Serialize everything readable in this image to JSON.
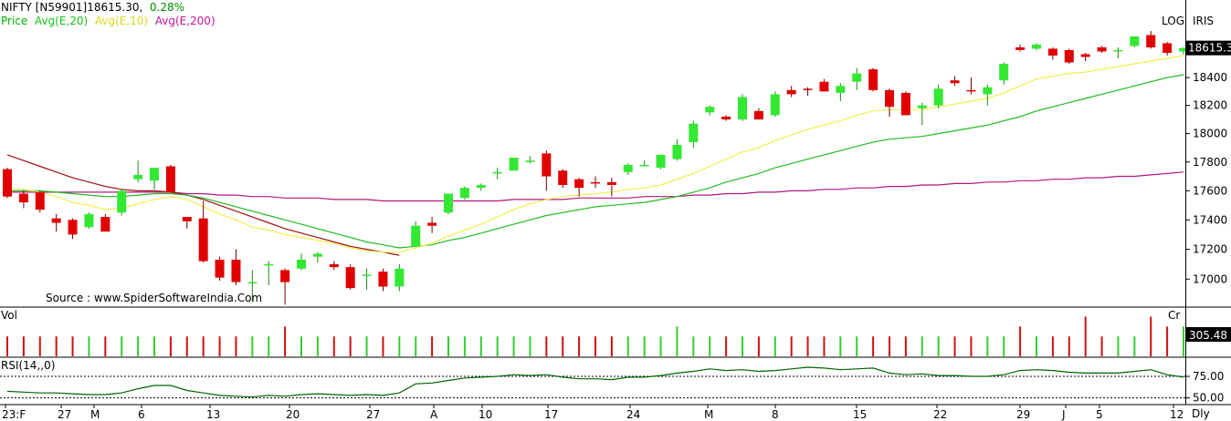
{
  "header": {
    "symbol": "NIFTY [N59901]",
    "last": "18615.30,",
    "change": "0.28%",
    "legend": [
      {
        "label": "Price",
        "color": "#00b000"
      },
      {
        "label": "Avg(E,20)",
        "color": "#19c019"
      },
      {
        "label": "Avg(E,10)",
        "color": "#e8e830"
      },
      {
        "label": "Avg(E,200)",
        "color": "#c0189a"
      }
    ],
    "mode_log": "LOG",
    "mode_iris": "IRIS"
  },
  "source_text": "Source : www.SpiderSoftwareIndia.Com",
  "volume_panel": {
    "label": "Vol",
    "unit": "Cr",
    "last_value": "305.48"
  },
  "rsi_panel": {
    "label": "RSI(14,,0)",
    "ticks": [
      "75.00",
      "50.00"
    ]
  },
  "footer": {
    "timeframe": "Dly"
  },
  "colors": {
    "up": "#33e833",
    "down": "#e00000",
    "ema10": "#f0f050",
    "ema20": "#22bb22",
    "ema200": "#b01880",
    "slow_ma": "#a01010",
    "vol_up": "#33cc33",
    "vol_down": "#cc1010"
  },
  "chart_data": {
    "type": "candlestick",
    "price_axis": {
      "scale": "log",
      "range": [
        16820,
        18740
      ],
      "ticks": [
        "18400",
        "18200",
        "18000",
        "17800",
        "17600",
        "17400",
        "17200",
        "17000"
      ],
      "last_label": "18615.3"
    },
    "date_ticks": [
      "23:F",
      "27",
      "M",
      "6",
      "13",
      "20",
      "27",
      "A",
      "10",
      "17",
      "24",
      "M",
      "8",
      "15",
      "22",
      "29",
      "J",
      "5",
      "12"
    ],
    "ohlc": [
      [
        17750,
        17760,
        17550,
        17560
      ],
      [
        17580,
        17600,
        17480,
        17520
      ],
      [
        17590,
        17600,
        17450,
        17470
      ],
      [
        17410,
        17440,
        17320,
        17380
      ],
      [
        17400,
        17410,
        17270,
        17300
      ],
      [
        17350,
        17450,
        17340,
        17440
      ],
      [
        17420,
        17440,
        17320,
        17320
      ],
      [
        17450,
        17610,
        17430,
        17600
      ],
      [
        17680,
        17810,
        17660,
        17710
      ],
      [
        17670,
        17760,
        17610,
        17760
      ],
      [
        17770,
        17780,
        17600,
        17590
      ],
      [
        17420,
        17420,
        17340,
        17390
      ],
      [
        17410,
        17530,
        17110,
        17120
      ],
      [
        17130,
        17150,
        16990,
        17010
      ],
      [
        17130,
        17200,
        16960,
        16980
      ],
      [
        16980,
        17060,
        16850,
        16980
      ],
      [
        17100,
        17120,
        16960,
        17100
      ],
      [
        17060,
        17070,
        16830,
        16980
      ],
      [
        17070,
        17170,
        17060,
        17130
      ],
      [
        17150,
        17180,
        17110,
        17170
      ],
      [
        17100,
        17120,
        17060,
        17080
      ],
      [
        17080,
        17100,
        16930,
        16940
      ],
      [
        17030,
        17070,
        16930,
        17030
      ],
      [
        17050,
        17070,
        16920,
        16950
      ],
      [
        16950,
        17100,
        16920,
        17070
      ],
      [
        17220,
        17390,
        17220,
        17360
      ],
      [
        17380,
        17420,
        17310,
        17360
      ],
      [
        17450,
        17580,
        17440,
        17580
      ],
      [
        17550,
        17630,
        17540,
        17620
      ],
      [
        17620,
        17650,
        17600,
        17640
      ],
      [
        17720,
        17760,
        17680,
        17730
      ],
      [
        17740,
        17830,
        17740,
        17830
      ],
      [
        17800,
        17840,
        17790,
        17810
      ],
      [
        17860,
        17880,
        17600,
        17700
      ],
      [
        17740,
        17750,
        17620,
        17640
      ],
      [
        17680,
        17690,
        17560,
        17620
      ],
      [
        17660,
        17700,
        17620,
        17650
      ],
      [
        17660,
        17690,
        17560,
        17640
      ],
      [
        17730,
        17790,
        17710,
        17780
      ],
      [
        17780,
        17810,
        17770,
        17780
      ],
      [
        17760,
        17850,
        17750,
        17850
      ],
      [
        17820,
        17960,
        17810,
        17920
      ],
      [
        17940,
        18090,
        17900,
        18070
      ],
      [
        18150,
        18200,
        18130,
        18190
      ],
      [
        18120,
        18130,
        18090,
        18100
      ],
      [
        18100,
        18280,
        18090,
        18260
      ],
      [
        18160,
        18180,
        18100,
        18100
      ],
      [
        18130,
        18300,
        18120,
        18280
      ],
      [
        18310,
        18340,
        18260,
        18280
      ],
      [
        18320,
        18330,
        18270,
        18310
      ],
      [
        18370,
        18390,
        18300,
        18300
      ],
      [
        18290,
        18360,
        18230,
        18340
      ],
      [
        18370,
        18470,
        18310,
        18430
      ],
      [
        18460,
        18470,
        18300,
        18310
      ],
      [
        18310,
        18320,
        18120,
        18190
      ],
      [
        18290,
        18300,
        18130,
        18130
      ],
      [
        18180,
        18220,
        18060,
        18200
      ],
      [
        18200,
        18350,
        18180,
        18320
      ],
      [
        18380,
        18410,
        18340,
        18360
      ],
      [
        18310,
        18400,
        18280,
        18300
      ],
      [
        18280,
        18350,
        18200,
        18330
      ],
      [
        18380,
        18510,
        18350,
        18500
      ],
      [
        18620,
        18640,
        18590,
        18600
      ],
      [
        18610,
        18650,
        18600,
        18640
      ],
      [
        18610,
        18620,
        18530,
        18560
      ],
      [
        18600,
        18610,
        18500,
        18510
      ],
      [
        18570,
        18580,
        18520,
        18550
      ],
      [
        18620,
        18630,
        18580,
        18590
      ],
      [
        18590,
        18620,
        18540,
        18600
      ],
      [
        18630,
        18700,
        18620,
        18700
      ],
      [
        18710,
        18740,
        18610,
        18620
      ],
      [
        18650,
        18660,
        18560,
        18580
      ],
      [
        18590,
        18620,
        18570,
        18615
      ]
    ],
    "ema10": [
      17620,
      17610,
      17590,
      17560,
      17520,
      17500,
      17470,
      17480,
      17510,
      17540,
      17560,
      17540,
      17490,
      17440,
      17400,
      17350,
      17330,
      17300,
      17280,
      17260,
      17240,
      17210,
      17190,
      17180,
      17180,
      17210,
      17240,
      17290,
      17330,
      17370,
      17420,
      17470,
      17510,
      17540,
      17560,
      17570,
      17580,
      17590,
      17610,
      17620,
      17640,
      17680,
      17720,
      17770,
      17820,
      17870,
      17900,
      17950,
      17990,
      18030,
      18060,
      18090,
      18130,
      18160,
      18170,
      18170,
      18170,
      18190,
      18210,
      18230,
      18250,
      18290,
      18340,
      18390,
      18410,
      18430,
      18440,
      18460,
      18480,
      18500,
      18520,
      18540,
      18560
    ],
    "ema20": [
      17600,
      17600,
      17600,
      17590,
      17580,
      17570,
      17560,
      17560,
      17570,
      17580,
      17580,
      17570,
      17550,
      17520,
      17490,
      17460,
      17430,
      17400,
      17370,
      17340,
      17310,
      17280,
      17250,
      17230,
      17210,
      17220,
      17230,
      17260,
      17280,
      17310,
      17340,
      17370,
      17400,
      17430,
      17450,
      17470,
      17490,
      17500,
      17510,
      17520,
      17540,
      17560,
      17590,
      17620,
      17660,
      17690,
      17720,
      17760,
      17790,
      17820,
      17850,
      17880,
      17910,
      17940,
      17960,
      17970,
      17980,
      18000,
      18020,
      18040,
      18060,
      18090,
      18120,
      18160,
      18190,
      18220,
      18250,
      18280,
      18310,
      18340,
      18370,
      18400,
      18420
    ],
    "ema200": [
      17590,
      17590,
      17590,
      17590,
      17590,
      17590,
      17590,
      17590,
      17590,
      17590,
      17590,
      17580,
      17580,
      17570,
      17570,
      17560,
      17560,
      17550,
      17550,
      17550,
      17540,
      17540,
      17540,
      17530,
      17530,
      17530,
      17530,
      17530,
      17530,
      17530,
      17530,
      17540,
      17540,
      17540,
      17540,
      17550,
      17550,
      17550,
      17550,
      17560,
      17560,
      17560,
      17570,
      17570,
      17580,
      17580,
      17590,
      17590,
      17600,
      17600,
      17610,
      17610,
      17620,
      17620,
      17630,
      17630,
      17640,
      17640,
      17650,
      17650,
      17660,
      17660,
      17670,
      17670,
      17680,
      17680,
      17690,
      17690,
      17700,
      17700,
      17710,
      17720,
      17730
    ],
    "slow_ma": [
      17850,
      17810,
      17770,
      17730,
      17690,
      17660,
      17630,
      17610,
      17600,
      17600,
      17590,
      17570,
      17540,
      17500,
      17460,
      17420,
      17380,
      17340,
      17310,
      17280,
      17250,
      17220,
      17200,
      17180,
      17160
    ],
    "volume": [
      2,
      2,
      2,
      2,
      2,
      2,
      2,
      2,
      2,
      2,
      2,
      2,
      2,
      2,
      2,
      2,
      2,
      3,
      2,
      2,
      2,
      2,
      2,
      2,
      2,
      2,
      2,
      2,
      2,
      2,
      2,
      2,
      2,
      2,
      2,
      2,
      2,
      2,
      2,
      2,
      2,
      3,
      2,
      2,
      2,
      2,
      2,
      2,
      2,
      2,
      2,
      2,
      2,
      2,
      2,
      2,
      2,
      2,
      2,
      2,
      2,
      2,
      3,
      2,
      2,
      2,
      4,
      2,
      2,
      2,
      4,
      3,
      3
    ],
    "rsi": [
      45,
      44,
      43,
      43,
      42,
      41,
      41,
      43,
      48,
      52,
      52,
      46,
      43,
      40,
      39,
      38,
      40,
      39,
      41,
      42,
      41,
      40,
      41,
      40,
      43,
      54,
      55,
      58,
      61,
      62,
      63,
      65,
      64,
      65,
      62,
      60,
      60,
      59,
      62,
      62,
      64,
      67,
      69,
      72,
      70,
      71,
      69,
      70,
      72,
      74,
      73,
      71,
      72,
      73,
      67,
      65,
      66,
      64,
      64,
      63,
      63,
      65,
      70,
      71,
      70,
      68,
      67,
      67,
      67,
      69,
      71,
      65,
      62
    ]
  }
}
